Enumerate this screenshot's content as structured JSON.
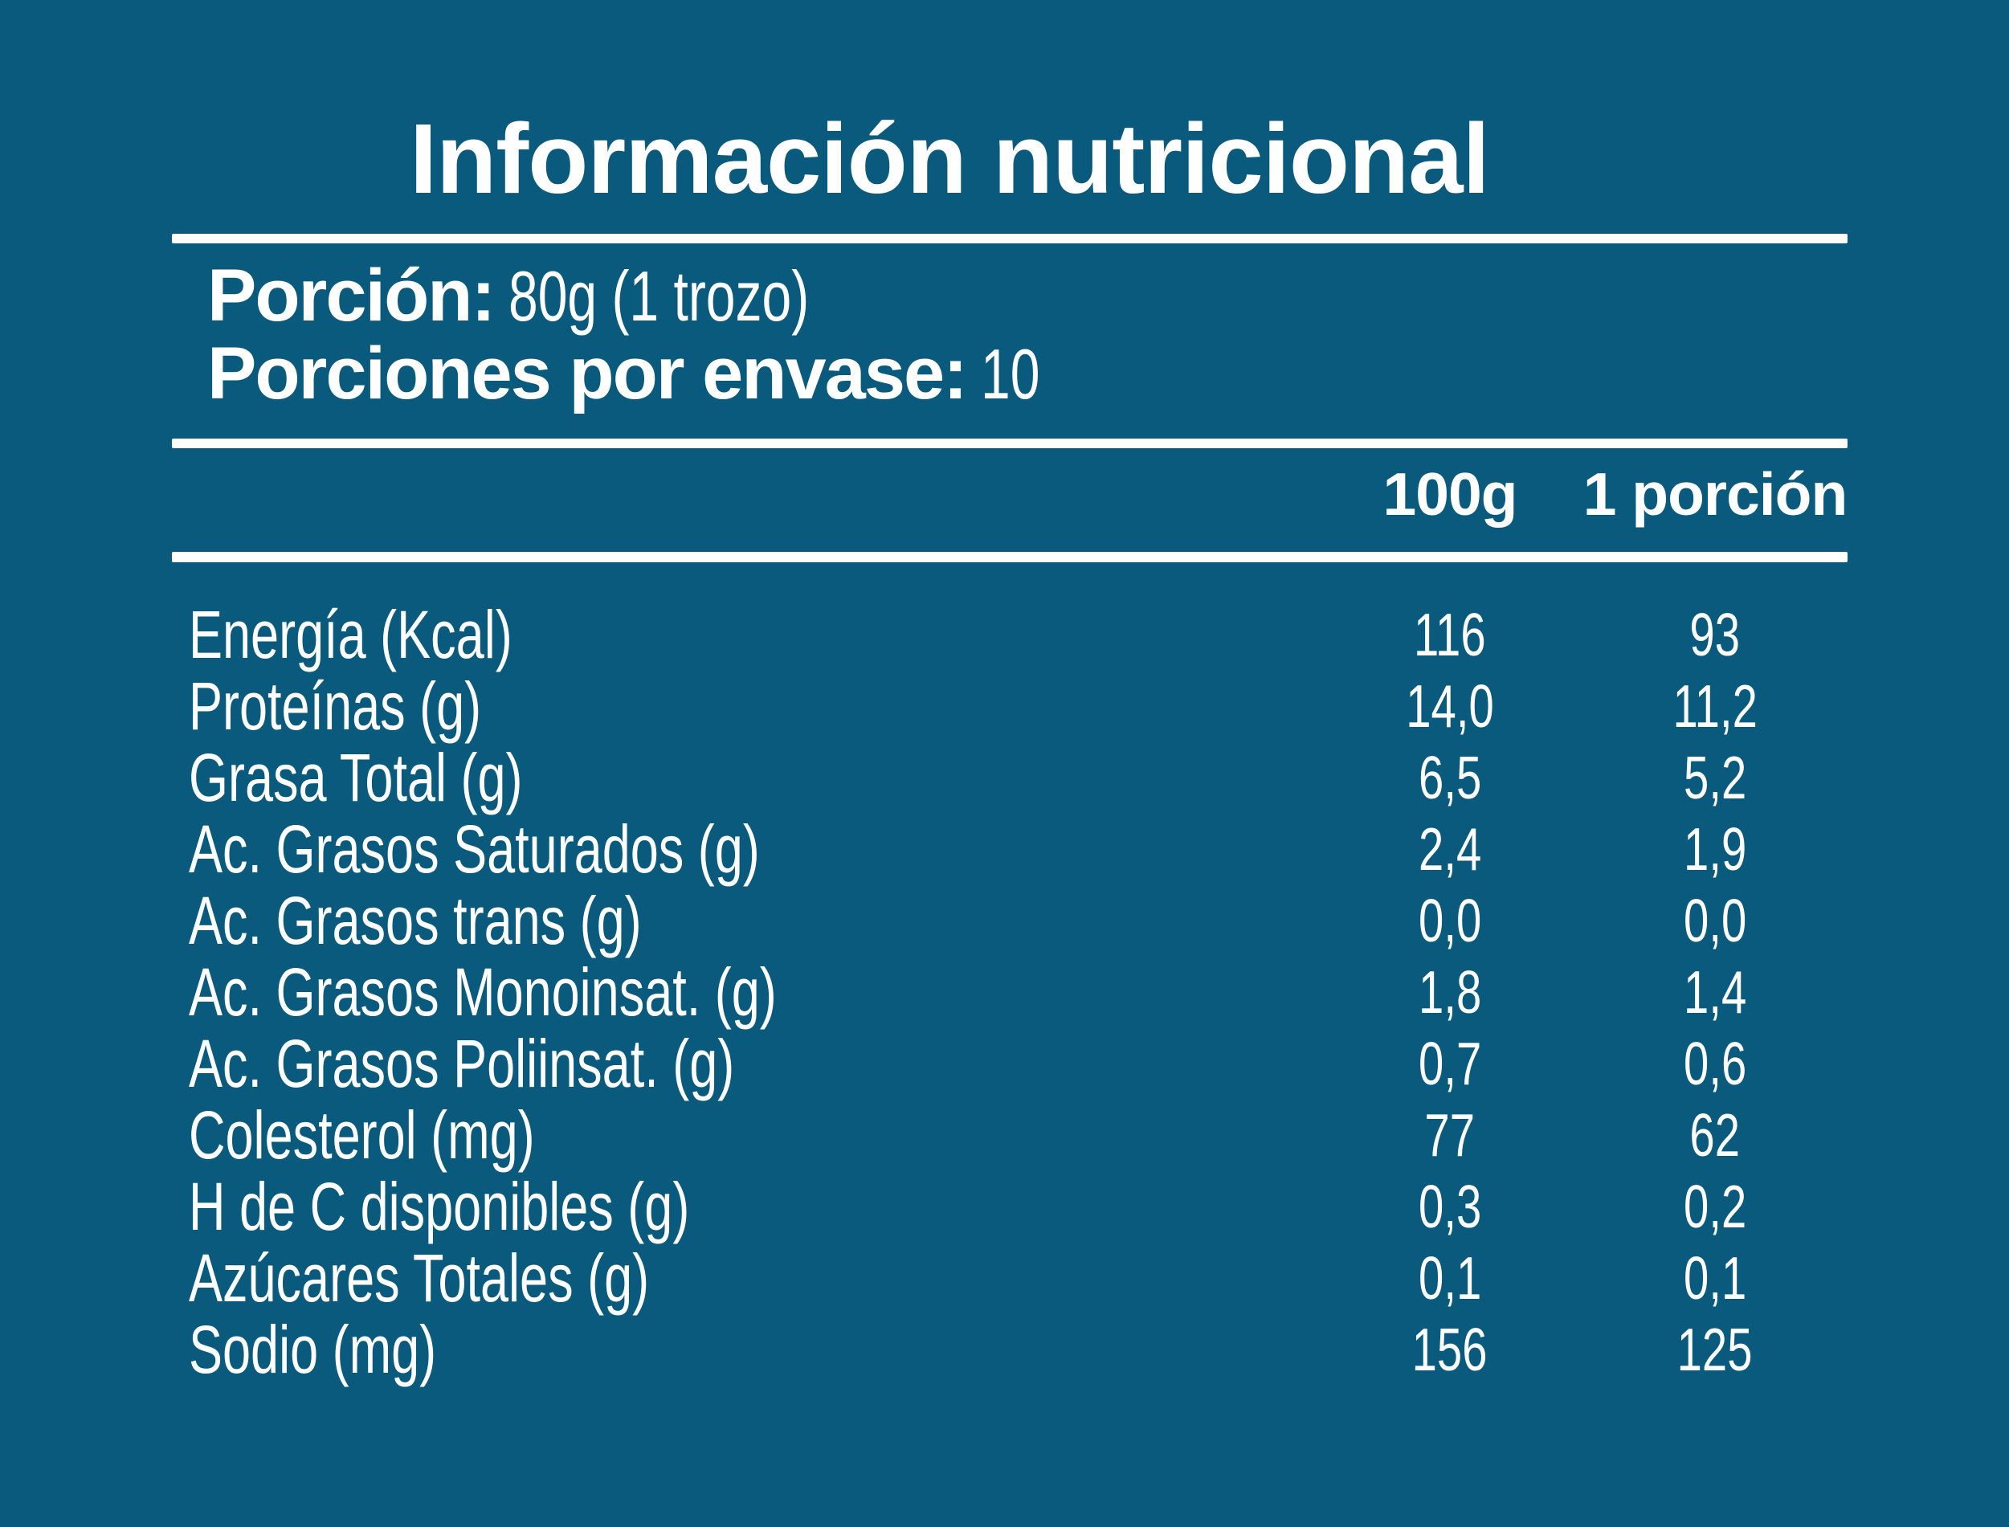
{
  "colors": {
    "background": "#0a5a7e",
    "text": "#ffffff"
  },
  "title": "Información nutricional",
  "serving": {
    "portion_label": "Porción:",
    "portion_value": "80g (1 trozo)",
    "servings_label": "Porciones por envase:",
    "servings_value": "10"
  },
  "table": {
    "col_headers": [
      "100g",
      "1 porción"
    ],
    "rows": [
      {
        "label": "Energía (Kcal)",
        "per100": "116",
        "portion": "93"
      },
      {
        "label": "Proteínas (g)",
        "per100": "14,0",
        "portion": "11,2"
      },
      {
        "label": "Grasa Total (g)",
        "per100": "6,5",
        "portion": "5,2"
      },
      {
        "label": "Ac. Grasos Saturados (g)",
        "per100": "2,4",
        "portion": "1,9"
      },
      {
        "label": "Ac. Grasos trans (g)",
        "per100": "0,0",
        "portion": "0,0"
      },
      {
        "label": "Ac. Grasos Monoinsat. (g)",
        "per100": "1,8",
        "portion": "1,4"
      },
      {
        "label": "Ac. Grasos Poliinsat. (g)",
        "per100": "0,7",
        "portion": "0,6"
      },
      {
        "label": "Colesterol (mg)",
        "per100": "77",
        "portion": "62"
      },
      {
        "label": "H de C disponibles (g)",
        "per100": "0,3",
        "portion": "0,2"
      },
      {
        "label": "Azúcares Totales (g)",
        "per100": "0,1",
        "portion": "0,1"
      },
      {
        "label": "Sodio (mg)",
        "per100": "156",
        "portion": "125"
      }
    ]
  }
}
